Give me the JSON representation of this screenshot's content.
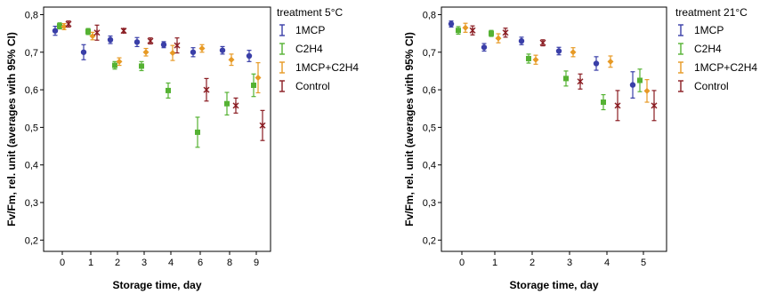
{
  "chart_data": [
    {
      "type": "scatter",
      "title": "",
      "xlabel": "Storage time, day",
      "ylabel": "Fv/Fm, rel. unit (averages with 95% CI)",
      "ylim": [
        0.17,
        0.82
      ],
      "yticks": [
        "0,2",
        "0,3",
        "0,4",
        "0,5",
        "0,6",
        "0,7",
        "0,8"
      ],
      "categories": [
        "0",
        "1",
        "2",
        "3",
        "4",
        "6",
        "8",
        "9"
      ],
      "grid": false,
      "legend_placement": "outside-right",
      "legend_title": "treatment 5°C",
      "series": [
        {
          "name": "1MCP",
          "color": "#3a3fa8",
          "marker": "circle",
          "values": [
            0.757,
            0.7,
            0.733,
            0.727,
            0.72,
            0.7,
            0.705,
            0.69
          ],
          "ci": [
            0.012,
            0.02,
            0.01,
            0.012,
            0.008,
            0.012,
            0.01,
            0.015
          ]
        },
        {
          "name": "C2H4",
          "color": "#55b233",
          "marker": "square",
          "values": [
            0.77,
            0.755,
            0.665,
            0.663,
            0.598,
            0.487,
            0.563,
            0.612
          ],
          "ci": [
            0.008,
            0.008,
            0.01,
            0.012,
            0.02,
            0.04,
            0.03,
            0.03
          ]
        },
        {
          "name": "1MCP+C2H4",
          "color": "#e79a25",
          "marker": "diamond",
          "values": [
            0.768,
            0.743,
            0.675,
            0.7,
            0.698,
            0.71,
            0.68,
            0.632
          ],
          "ci": [
            0.008,
            0.01,
            0.01,
            0.01,
            0.02,
            0.01,
            0.015,
            0.04
          ]
        },
        {
          "name": "Control",
          "color": "#8a1c22",
          "marker": "star",
          "values": [
            0.775,
            0.752,
            0.757,
            0.73,
            0.718,
            0.6,
            0.558,
            0.505
          ],
          "ci": [
            0.008,
            0.02,
            0.006,
            0.008,
            0.02,
            0.03,
            0.02,
            0.04
          ]
        }
      ]
    },
    {
      "type": "scatter",
      "title": "",
      "xlabel": "Storage time, day",
      "ylabel": "Fv/Fm, rel. unit (averages with 95% CI)",
      "ylim": [
        0.17,
        0.82
      ],
      "yticks": [
        "0,2",
        "0,3",
        "0,4",
        "0,5",
        "0,6",
        "0,7",
        "0,8"
      ],
      "categories": [
        "0",
        "1",
        "2",
        "3",
        "4",
        "5"
      ],
      "grid": false,
      "legend_placement": "outside-right",
      "legend_title": "treatment 21°C",
      "series": [
        {
          "name": "1MCP",
          "color": "#3a3fa8",
          "marker": "circle",
          "values": [
            0.775,
            0.713,
            0.73,
            0.703,
            0.67,
            0.613
          ],
          "ci": [
            0.008,
            0.01,
            0.01,
            0.01,
            0.018,
            0.035
          ]
        },
        {
          "name": "C2H4",
          "color": "#55b233",
          "marker": "square",
          "values": [
            0.758,
            0.75,
            0.683,
            0.63,
            0.567,
            0.625
          ],
          "ci": [
            0.01,
            0.008,
            0.012,
            0.02,
            0.02,
            0.03
          ]
        },
        {
          "name": "1MCP+C2H4",
          "color": "#e79a25",
          "marker": "diamond",
          "values": [
            0.765,
            0.737,
            0.68,
            0.7,
            0.675,
            0.597
          ],
          "ci": [
            0.012,
            0.012,
            0.012,
            0.012,
            0.015,
            0.03
          ]
        },
        {
          "name": "Control",
          "color": "#8a1c22",
          "marker": "star",
          "values": [
            0.758,
            0.752,
            0.725,
            0.622,
            0.558,
            0.558
          ],
          "ci": [
            0.012,
            0.012,
            0.008,
            0.02,
            0.04,
            0.04
          ]
        }
      ]
    }
  ]
}
